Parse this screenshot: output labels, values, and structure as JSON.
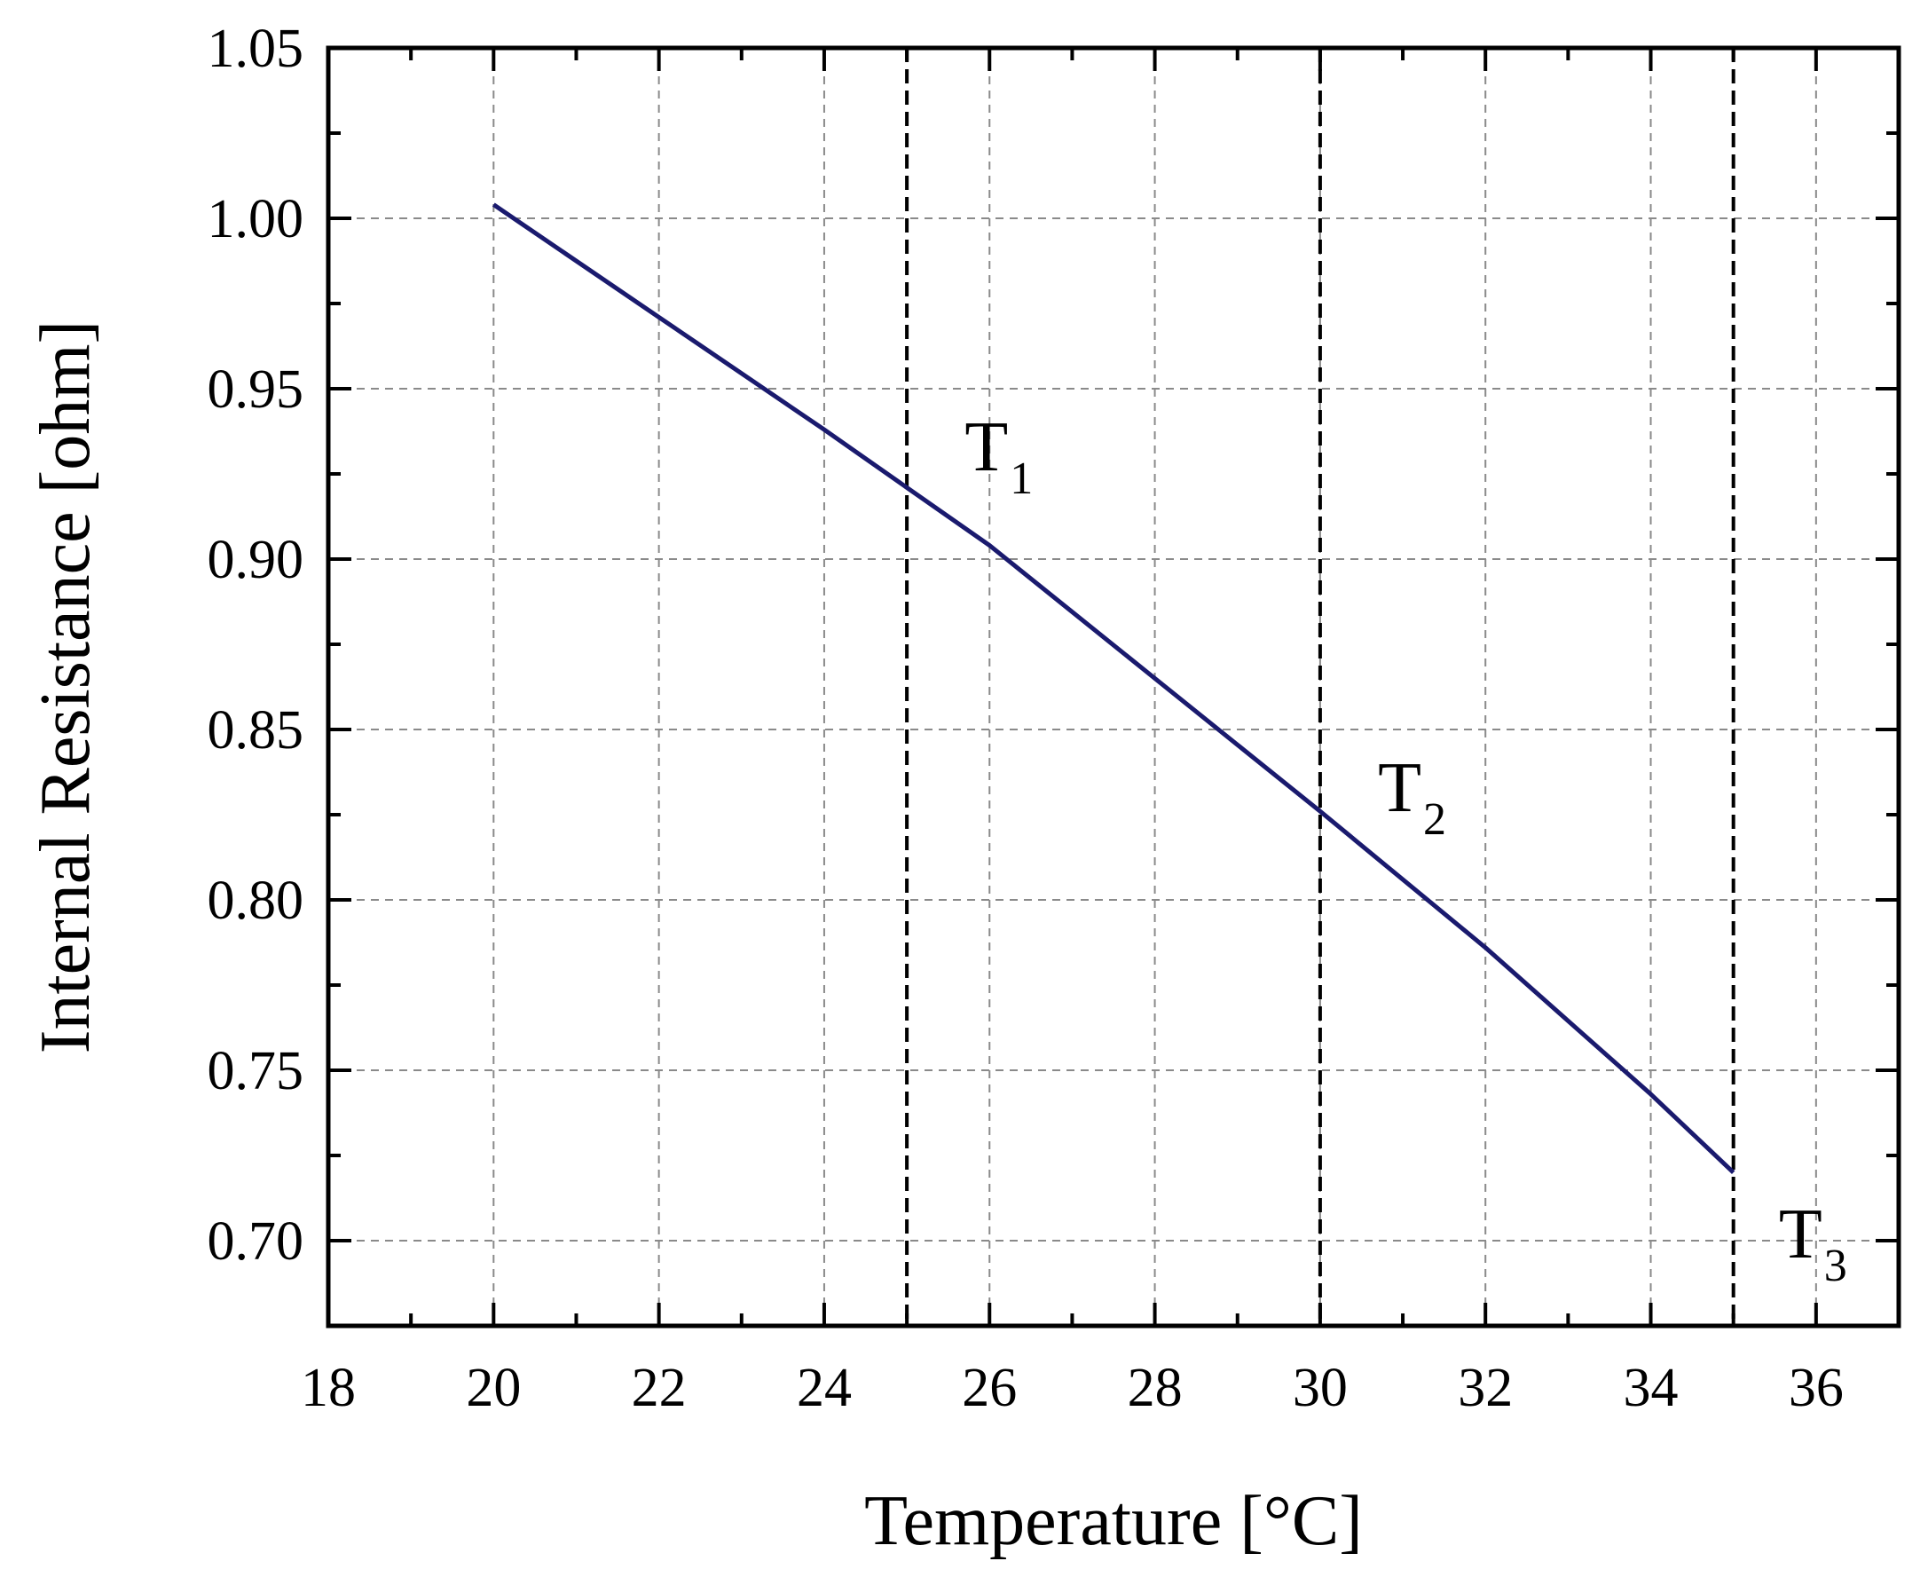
{
  "chart_data": {
    "type": "line",
    "title": "",
    "xlabel": "Temperature [°C]",
    "ylabel": "Internal Resistance [ohm]",
    "xlim": [
      18,
      37
    ],
    "ylim": [
      0.675,
      1.05
    ],
    "x_ticks": [
      18,
      20,
      22,
      24,
      26,
      28,
      30,
      32,
      34,
      36
    ],
    "x_tick_labels": [
      "18",
      "20",
      "22",
      "24",
      "26",
      "28",
      "30",
      "32",
      "34",
      "36"
    ],
    "y_ticks": [
      0.7,
      0.75,
      0.8,
      0.85,
      0.9,
      0.95,
      1.0,
      1.05
    ],
    "y_tick_labels": [
      "0.70",
      "0.75",
      "0.80",
      "0.85",
      "0.90",
      "0.95",
      "1.00",
      "1.05"
    ],
    "grid": true,
    "series": [
      {
        "color": "#1a1a6e",
        "x": [
          20,
          22,
          24,
          25,
          26,
          28,
          30,
          32,
          34,
          35
        ],
        "y": [
          1.004,
          0.971,
          0.938,
          0.921,
          0.904,
          0.865,
          0.826,
          0.786,
          0.743,
          0.72
        ]
      }
    ],
    "annotations": [
      {
        "base": "T",
        "sub": "1",
        "x": 25.7,
        "y": 0.926
      },
      {
        "base": "T",
        "sub": "2",
        "x": 30.7,
        "y": 0.826
      },
      {
        "base": "T",
        "sub": "3",
        "x": 35.55,
        "y": 0.695
      }
    ],
    "vertical_lines": [
      25,
      30,
      35
    ]
  }
}
